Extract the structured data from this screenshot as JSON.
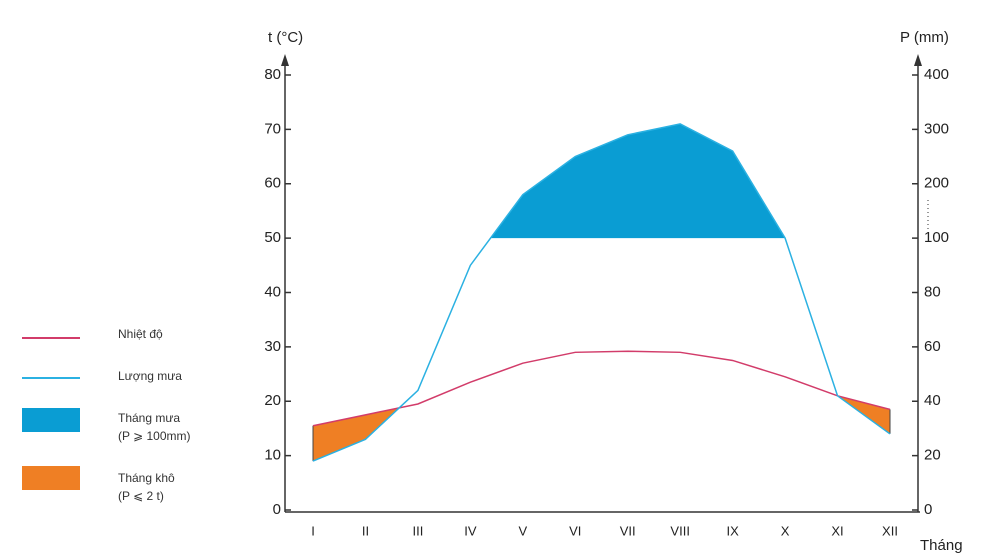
{
  "chart_data": {
    "type": "climate",
    "y_label": "t (°C)",
    "y2_label": "P (mm)",
    "x_label": "Tháng",
    "categories": [
      "I",
      "II",
      "III",
      "IV",
      "V",
      "VI",
      "VII",
      "VIII",
      "IX",
      "X",
      "XI",
      "XII"
    ],
    "series": [
      {
        "name": "Nhiệt độ",
        "color": "#d23c6a",
        "values": [
          15.5,
          17.5,
          19.5,
          23.5,
          27,
          29,
          29.2,
          29,
          27.5,
          24.5,
          21,
          18.5
        ]
      },
      {
        "name": "Lượng mưa",
        "color": "#2bb1e2",
        "axis": "y2",
        "values": [
          18,
          26,
          44,
          90,
          180,
          250,
          290,
          310,
          260,
          100,
          42,
          28
        ]
      }
    ],
    "fills": [
      {
        "name": "Tháng mưa",
        "note": "(P ⩾ 100mm)",
        "color": "#0a9dd3"
      },
      {
        "name": "Tháng khô",
        "note": "(P ⩽ 2 t)",
        "color": "#ef7f24"
      }
    ],
    "wet_threshold": 100,
    "ylim": [
      0,
      80
    ],
    "yticks": [
      0,
      10,
      20,
      30,
      40,
      50,
      60,
      70,
      80
    ],
    "y2lim": [
      0,
      400
    ],
    "y2ticks": [
      0,
      20,
      40,
      60,
      80,
      100,
      200,
      300,
      400
    ]
  }
}
